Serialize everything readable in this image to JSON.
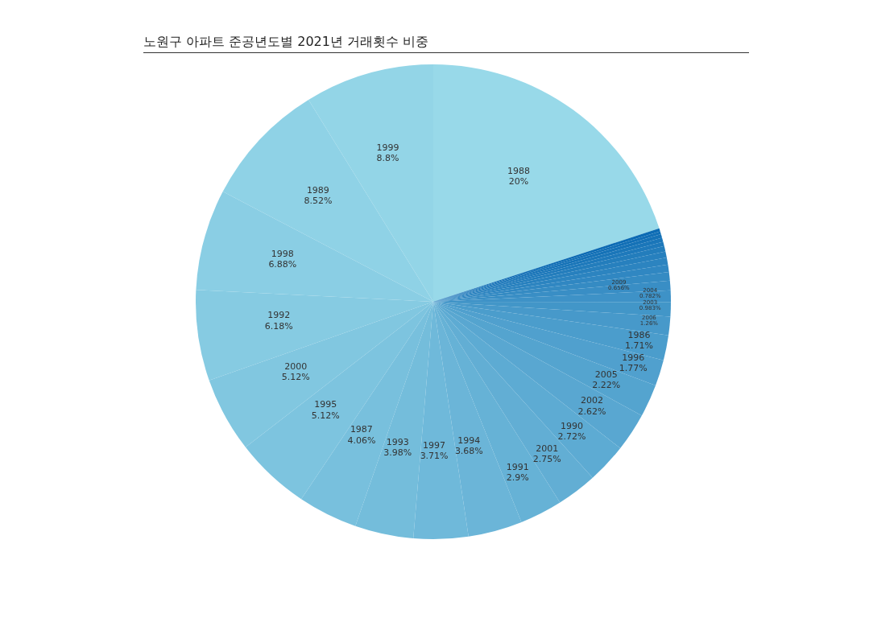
{
  "chart_data": {
    "type": "pie",
    "title": "노원구 아파트 준공년도별 2021년 거래횟수 비중",
    "categories": [
      "1988",
      "1999",
      "1989",
      "1998",
      "1992",
      "2000",
      "1995",
      "1987",
      "1993",
      "1997",
      "1994",
      "1991",
      "2001",
      "1990",
      "2002",
      "2005",
      "1996",
      "1986",
      "2006",
      "2003",
      "2004",
      "2009",
      null,
      null,
      null,
      null,
      null,
      null,
      null,
      null,
      null,
      null
    ],
    "values": [
      20,
      8.8,
      8.52,
      6.88,
      6.18,
      5.12,
      5.12,
      4.06,
      3.98,
      3.71,
      3.68,
      2.9,
      2.75,
      2.72,
      2.62,
      2.22,
      1.77,
      1.71,
      1.26,
      0.983,
      0.782,
      0.656,
      0.58,
      0.5,
      0.477,
      0.42,
      0.37,
      0.3,
      0.28,
      0.25,
      0.2,
      0.202
    ],
    "colors": [
      "#98d9e9",
      "#93d5e7",
      "#8fd2e6",
      "#8acee4",
      "#86cbe2",
      "#81c7e0",
      "#7dc4df",
      "#78c0dd",
      "#74bddb",
      "#6fb9da",
      "#6bb5d8",
      "#66b2d6",
      "#62aed4",
      "#5dabd3",
      "#59a7d1",
      "#54a4cf",
      "#50a0ce",
      "#4b9dcc",
      "#4799ca",
      "#4296c8",
      "#3e92c7",
      "#398ec5",
      "#358bc3",
      "#3087c2",
      "#2c84c0",
      "#2780be",
      "#237dbc",
      "#1e79bb",
      "#1a76b9",
      "#1572b7",
      "#116fb6",
      "#0c6bb4"
    ],
    "value_labels": [
      "20%",
      "8.8%",
      "8.52%",
      "6.88%",
      "6.18%",
      "5.12%",
      "5.12%",
      "4.06%",
      "3.98%",
      "3.71%",
      "3.68%",
      "2.9%",
      "2.75%",
      "2.72%",
      "2.62%",
      "2.22%",
      "1.77%",
      "1.71%",
      "1.26%",
      "0.983%",
      "0.782%",
      "0.656%",
      null,
      null,
      null,
      null,
      null,
      null,
      null,
      null,
      null,
      null
    ]
  }
}
